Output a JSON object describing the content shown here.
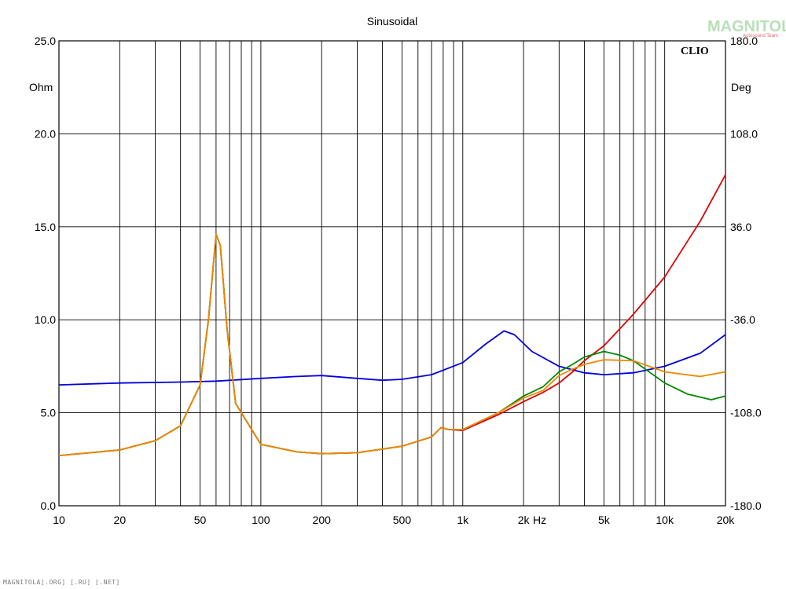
{
  "chart_data": {
    "type": "line",
    "title": "Sinusoidal",
    "brand": "CLIO",
    "watermark": "MAGNITOLA",
    "watermark_sub": "Autosound Team",
    "footer": "MAGNITOLA[.ORG] [.RU] [.NET]",
    "x_unit": "Hz",
    "x_scale": "log",
    "xlim": [
      10,
      20000
    ],
    "x_ticks": [
      {
        "value": 10,
        "label": "10"
      },
      {
        "value": 20,
        "label": "20"
      },
      {
        "value": 50,
        "label": "50"
      },
      {
        "value": 100,
        "label": "100"
      },
      {
        "value": 200,
        "label": "200"
      },
      {
        "value": 500,
        "label": "500"
      },
      {
        "value": 1000,
        "label": "1k"
      },
      {
        "value": 2000,
        "label": "2k"
      },
      {
        "value": 5000,
        "label": "5k"
      },
      {
        "value": 10000,
        "label": "10k"
      },
      {
        "value": 20000,
        "label": "20k"
      }
    ],
    "y_left": {
      "unit": "Ohm",
      "lim": [
        0,
        25
      ],
      "ticks": [
        "0.0",
        "5.0",
        "10.0",
        "15.0",
        "20.0",
        "25.0"
      ]
    },
    "y_right": {
      "unit": "Deg",
      "lim": [
        -180,
        180
      ],
      "ticks": [
        "-180.0",
        "-108.0",
        "-36.0",
        "36.0",
        "108.0",
        "180.0"
      ]
    },
    "grid": true,
    "series": [
      {
        "color": "#0000dd",
        "axis": "left",
        "points": [
          [
            10,
            6.5
          ],
          [
            20,
            6.6
          ],
          [
            40,
            6.65
          ],
          [
            60,
            6.7
          ],
          [
            100,
            6.85
          ],
          [
            150,
            6.95
          ],
          [
            200,
            7.0
          ],
          [
            300,
            6.85
          ],
          [
            400,
            6.75
          ],
          [
            500,
            6.8
          ],
          [
            700,
            7.05
          ],
          [
            1000,
            7.7
          ],
          [
            1300,
            8.7
          ],
          [
            1600,
            9.4
          ],
          [
            1800,
            9.2
          ],
          [
            2200,
            8.3
          ],
          [
            3000,
            7.5
          ],
          [
            4000,
            7.15
          ],
          [
            5000,
            7.05
          ],
          [
            7000,
            7.15
          ],
          [
            10000,
            7.5
          ],
          [
            15000,
            8.2
          ],
          [
            20000,
            9.2
          ]
        ]
      },
      {
        "color": "#dd0000",
        "axis": "left",
        "points": [
          [
            10,
            2.7
          ],
          [
            20,
            3.0
          ],
          [
            30,
            3.5
          ],
          [
            40,
            4.3
          ],
          [
            50,
            6.5
          ],
          [
            55,
            10.0
          ],
          [
            60,
            14.6
          ],
          [
            63,
            14.0
          ],
          [
            68,
            9.5
          ],
          [
            75,
            5.5
          ],
          [
            100,
            3.3
          ],
          [
            150,
            2.9
          ],
          [
            200,
            2.8
          ],
          [
            300,
            2.85
          ],
          [
            500,
            3.2
          ],
          [
            700,
            3.7
          ],
          [
            780,
            4.2
          ],
          [
            850,
            4.1
          ],
          [
            1000,
            4.05
          ],
          [
            1500,
            4.9
          ],
          [
            2000,
            5.6
          ],
          [
            2500,
            6.1
          ],
          [
            3000,
            6.6
          ],
          [
            3500,
            7.2
          ],
          [
            4000,
            7.8
          ],
          [
            5000,
            8.6
          ],
          [
            7000,
            10.3
          ],
          [
            10000,
            12.3
          ],
          [
            15000,
            15.3
          ],
          [
            20000,
            17.8
          ]
        ]
      },
      {
        "color": "#008800",
        "axis": "left",
        "points": [
          [
            10,
            2.7
          ],
          [
            20,
            3.0
          ],
          [
            30,
            3.5
          ],
          [
            40,
            4.3
          ],
          [
            50,
            6.5
          ],
          [
            55,
            10.0
          ],
          [
            60,
            14.6
          ],
          [
            63,
            14.0
          ],
          [
            68,
            9.5
          ],
          [
            75,
            5.5
          ],
          [
            100,
            3.3
          ],
          [
            150,
            2.9
          ],
          [
            200,
            2.8
          ],
          [
            300,
            2.85
          ],
          [
            500,
            3.2
          ],
          [
            700,
            3.7
          ],
          [
            780,
            4.2
          ],
          [
            850,
            4.1
          ],
          [
            1000,
            4.1
          ],
          [
            1500,
            5.0
          ],
          [
            2000,
            5.9
          ],
          [
            2500,
            6.4
          ],
          [
            3000,
            7.2
          ],
          [
            3500,
            7.6
          ],
          [
            4000,
            8.0
          ],
          [
            5000,
            8.3
          ],
          [
            6000,
            8.1
          ],
          [
            7000,
            7.8
          ],
          [
            10000,
            6.6
          ],
          [
            13000,
            6.0
          ],
          [
            17000,
            5.7
          ],
          [
            20000,
            5.9
          ]
        ]
      },
      {
        "color": "#ee8800",
        "axis": "left",
        "points": [
          [
            10,
            2.7
          ],
          [
            20,
            3.0
          ],
          [
            30,
            3.5
          ],
          [
            40,
            4.3
          ],
          [
            50,
            6.5
          ],
          [
            55,
            10.0
          ],
          [
            60,
            14.6
          ],
          [
            63,
            14.0
          ],
          [
            68,
            9.5
          ],
          [
            75,
            5.5
          ],
          [
            100,
            3.3
          ],
          [
            150,
            2.9
          ],
          [
            200,
            2.8
          ],
          [
            300,
            2.85
          ],
          [
            500,
            3.2
          ],
          [
            700,
            3.7
          ],
          [
            780,
            4.2
          ],
          [
            850,
            4.1
          ],
          [
            1000,
            4.1
          ],
          [
            1500,
            5.0
          ],
          [
            2000,
            5.8
          ],
          [
            2500,
            6.2
          ],
          [
            3000,
            7.0
          ],
          [
            3500,
            7.35
          ],
          [
            4000,
            7.6
          ],
          [
            5000,
            7.85
          ],
          [
            7000,
            7.8
          ],
          [
            10000,
            7.2
          ],
          [
            15000,
            6.95
          ],
          [
            20000,
            7.2
          ]
        ]
      }
    ]
  }
}
